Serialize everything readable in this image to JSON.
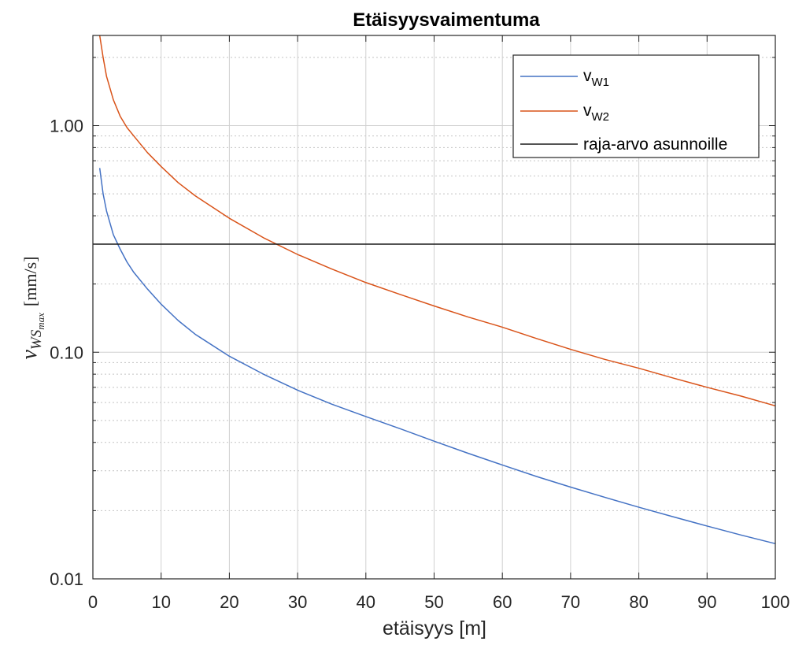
{
  "chart_data": {
    "type": "line",
    "title": "Etäisyysvaimentuma",
    "xlabel": "etäisyys [m]",
    "ylabel": {
      "main": "v",
      "sub1": "W",
      "sub2": "S",
      "sub3": "max",
      "unit": "[mm/s]"
    },
    "xlim": [
      0,
      100
    ],
    "ylim": [
      0.01,
      2.5
    ],
    "yscale": "log",
    "grid": true,
    "minor_grid": true,
    "legend_position": "top-right",
    "x_ticks": [
      {
        "value": 0,
        "label": "0"
      },
      {
        "value": 10,
        "label": "10"
      },
      {
        "value": 20,
        "label": "20"
      },
      {
        "value": 30,
        "label": "30"
      },
      {
        "value": 40,
        "label": "40"
      },
      {
        "value": 50,
        "label": "50"
      },
      {
        "value": 60,
        "label": "60"
      },
      {
        "value": 70,
        "label": "70"
      },
      {
        "value": 80,
        "label": "80"
      },
      {
        "value": 90,
        "label": "90"
      },
      {
        "value": 100,
        "label": "100"
      }
    ],
    "y_ticks": [
      {
        "value": 0.01,
        "label": "0.01"
      },
      {
        "value": 0.1,
        "label": "0.10"
      },
      {
        "value": 1,
        "label": "1.00"
      }
    ],
    "series": [
      {
        "key": "vw1",
        "legend": {
          "main": "v",
          "sub": "W1"
        },
        "color": "#4472c4",
        "x": [
          1,
          1.5,
          2,
          3,
          4,
          5,
          6,
          8,
          10,
          12.5,
          15,
          20,
          25,
          30,
          35,
          40,
          45,
          50,
          55,
          60,
          65,
          70,
          75,
          80,
          85,
          90,
          95,
          100
        ],
        "y": [
          0.65,
          0.5,
          0.42,
          0.33,
          0.285,
          0.25,
          0.225,
          0.19,
          0.163,
          0.138,
          0.12,
          0.096,
          0.08,
          0.068,
          0.059,
          0.052,
          0.046,
          0.0405,
          0.0358,
          0.0318,
          0.0283,
          0.0254,
          0.0229,
          0.0207,
          0.0188,
          0.0171,
          0.0156,
          0.0143
        ]
      },
      {
        "key": "vw2",
        "legend": {
          "main": "v",
          "sub": "W2"
        },
        "color": "#d95319",
        "x": [
          1,
          1.5,
          2,
          3,
          4,
          5,
          6,
          8,
          10,
          12.5,
          15,
          20,
          25,
          30,
          35,
          40,
          45,
          50,
          55,
          60,
          65,
          70,
          75,
          80,
          85,
          90,
          95,
          100
        ],
        "y": [
          2.5,
          2.0,
          1.65,
          1.3,
          1.1,
          0.98,
          0.9,
          0.76,
          0.66,
          0.56,
          0.49,
          0.39,
          0.32,
          0.27,
          0.233,
          0.203,
          0.18,
          0.16,
          0.143,
          0.129,
          0.115,
          0.103,
          0.093,
          0.085,
          0.077,
          0.07,
          0.064,
          0.058
        ]
      },
      {
        "key": "limit",
        "legend": {
          "main": "raja-arvo asunnoille",
          "sub": ""
        },
        "color": "#1a1a1a",
        "x": [
          0,
          100
        ],
        "y": [
          0.3,
          0.3
        ]
      }
    ]
  }
}
